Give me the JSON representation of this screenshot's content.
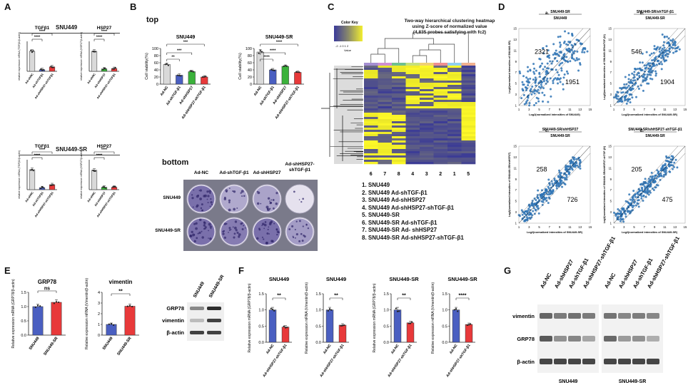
{
  "panels": {
    "A": "A",
    "B": "B",
    "C": "C",
    "D": "D",
    "E": "E",
    "F": "F",
    "G": "G"
  },
  "A": {
    "snu449_title": "SNU449",
    "snusr_title": "SNU449-SR",
    "charts": [
      {
        "title": "TGFβ1",
        "ylabel": "relative expression mRNA (TGFβ1/β-actin)",
        "categories": [
          "Ad-shNC",
          "Ad-shTGFβ1",
          "Ad-shHSP27-shTGFβ1"
        ],
        "values": [
          1.0,
          0.08,
          0.22
        ],
        "colors": [
          "#d9d9d9",
          "#4a5fc1",
          "#e8393a"
        ],
        "sig": [
          "****",
          "****"
        ]
      },
      {
        "title": "HSP27",
        "ylabel": "relative expression mRNA (HSP27/β-actin)",
        "categories": [
          "Ad-shNC",
          "Ad-shHSP27",
          "Ad-shHSP27-shTGFβ1"
        ],
        "values": [
          1.0,
          0.12,
          0.14
        ],
        "colors": [
          "#d9d9d9",
          "#3bb23b",
          "#e8393a"
        ],
        "sig": [
          "****",
          "****"
        ]
      },
      {
        "title": "TGFβ1",
        "ylabel": "relative expression mRNA (TGFβ1/β-actin)",
        "categories": [
          "Ad-shNC",
          "Ad-shTGFβ1",
          "Ad-shHSP27-shTGFβ1"
        ],
        "values": [
          1.0,
          0.1,
          0.25
        ],
        "colors": [
          "#d9d9d9",
          "#4a5fc1",
          "#e8393a"
        ],
        "sig": [
          "****",
          "****"
        ]
      },
      {
        "title": "HSP27",
        "ylabel": "relative expression mRNA (HSP27/β-actin)",
        "categories": [
          "Ad-shNC",
          "Ad-shHSP27",
          "Ad-shHSP27-shTGFβ1"
        ],
        "values": [
          0.97,
          0.12,
          0.12
        ],
        "colors": [
          "#d9d9d9",
          "#3bb23b",
          "#e8393a"
        ],
        "sig": [
          "****",
          "****"
        ]
      }
    ]
  },
  "B": {
    "top_label": "top",
    "bottom_label": "bottom",
    "charts": [
      {
        "title": "SNU449",
        "ylabel": "Cell viability(%)",
        "yticks": [
          "0",
          "20",
          "40",
          "60",
          "80",
          "100"
        ],
        "categories": [
          "Ad-NC",
          "Ad-shTGF-β1",
          "Ad-shHSP27",
          "Ad-shHSP27-shTGF-β1"
        ],
        "values": [
          55,
          25,
          35,
          20
        ],
        "colors": [
          "#d9d9d9",
          "#4a5fc1",
          "#3bb23b",
          "#e8393a"
        ],
        "sig": [
          "**",
          "***",
          "***"
        ]
      },
      {
        "title": "SNU449-SR",
        "ylabel": "Cell viability(%)",
        "yticks": [
          "0",
          "20",
          "40",
          "60",
          "80",
          "100"
        ],
        "categories": [
          "Ad-NC",
          "Ad-shTGF-β1",
          "Ad-shHSP27",
          "Ad-shHSP27-shTGF-β1"
        ],
        "values": [
          90,
          40,
          50,
          33
        ],
        "colors": [
          "#d9d9d9",
          "#4a5fc1",
          "#3bb23b",
          "#e8393a"
        ],
        "sig": [
          "****",
          "****",
          "****"
        ]
      }
    ],
    "plate_cols": [
      "Ad-NC",
      "Ad-shTGF-β1",
      "Ad-shHSP27",
      "Ad-shHSP27-\nshTGF-β1"
    ],
    "plate_col_l1": [
      "Ad-NC",
      "Ad-shTGF-β1",
      "Ad-shHSP27",
      "Ad-shHSP27-"
    ],
    "plate_col_l2": [
      "",
      "",
      "",
      "shTGF-β1"
    ],
    "plate_rows": [
      "SNU449",
      "SNU449-SR"
    ]
  },
  "C": {
    "title1": "Two-way hierarchical clustering heatmap",
    "title2": "using Z-score of normalized value",
    "title3": "(4,835 probes satisfying with fc2)",
    "color_key": "Color Key",
    "value_label": "Value",
    "key_ticks": "-2  -1  0  1  2",
    "col_order": [
      "6",
      "7",
      "8",
      "4",
      "3",
      "2",
      "1",
      "5"
    ],
    "col_colors": [
      "#a58fd1",
      "#d08fd1",
      "#6fc08f",
      "#c5e07a",
      "#f0d075",
      "#f08f8f",
      "#8fd0f0",
      "#f0b08f"
    ],
    "legend": [
      "1. SNU449",
      "2. SNU449 Ad-shTGF-β1",
      "3. SNU449 Ad-shHSP27",
      "4. SNU449 Ad-shHSP27-shTGF-β1",
      "5. SNU449-SR",
      "6. SNU449-SR Ad-shTGF-β1",
      "7. SNU449-SR Ad- shHSP27",
      "8. SNU449-SR Ad-shHSP27-shTGF-β1"
    ]
  },
  "D": {
    "plots": [
      {
        "letter": "a.",
        "num": "SNU449-SR",
        "den": "SNU449",
        "up": "2321",
        "down": "1951",
        "ylabel": "Log2(normalized intensities of SNU449-SR)",
        "xlabel": "Log2(normalized intensities of SNU449)"
      },
      {
        "letter": "b.",
        "num": "SNU449-SR/shTGF-β1",
        "den": "SNU449-SR",
        "up": "546",
        "down": "1904",
        "ylabel": "Log2(normalized intensities of SNU449-SR/shTGF-β1)",
        "xlabel": "Log2(normalized intensities of SNU449-SR)"
      },
      {
        "letter": "c.",
        "num": "SNU449-SR/shHSP27",
        "den": "SNU449-SR",
        "up": "258",
        "down": "726",
        "ylabel": "Log2(normalized intensities of SNU449-SR/shHSP27)",
        "xlabel": "Log2(normalized intensities of SNU449-SR)"
      },
      {
        "letter": "d.",
        "num": "SNU449-SR/shHSP27-shTGF-β1",
        "den": "SNU449-SR",
        "up": "205",
        "down": "475",
        "ylabel": "Log2(normalized intensities of SNU449-SR/shHSP27-shTGF-β1)",
        "xlabel": "Log2(normalized intensities of SNU449-SR)"
      }
    ],
    "ticks_x": [
      "1",
      "3",
      "5",
      "7",
      "9",
      "11",
      "13",
      "15"
    ],
    "ticks_y": [
      "1",
      "3",
      "5",
      "7",
      "9",
      "11",
      "13",
      "15"
    ]
  },
  "E": {
    "charts": [
      {
        "title": "GRP78",
        "ylabel": "Relative expression mRNA (GRP78/β-actin)",
        "yticks": [
          "0.0",
          "0.5",
          "1.0",
          "1.5"
        ],
        "categories": [
          "SNU449",
          "SNU449-SR"
        ],
        "values": [
          1.0,
          1.15
        ],
        "colors": [
          "#4a5fc1",
          "#e8393a"
        ],
        "sig": "ns"
      },
      {
        "title": "vimentin",
        "ylabel": "Relative expression mRNA (Vimentin/β-actin)",
        "yticks": [
          "0",
          "1",
          "2",
          "3",
          "4"
        ],
        "categories": [
          "SNU449",
          "SNU449-SR"
        ],
        "values": [
          1.0,
          2.7
        ],
        "colors": [
          "#4a5fc1",
          "#e8393a"
        ],
        "sig": "**"
      }
    ],
    "blot_cols": [
      "SNU449",
      "SNU449-SR"
    ],
    "blot_rows": [
      "GRP78",
      "vimentin",
      "β-actin"
    ]
  },
  "F": {
    "charts": [
      {
        "title": "SNU449",
        "ylabel": "Relative expression mRNA (GRP78/β-actin)",
        "categories": [
          "Ad-NC",
          "Ad-shHSP27-shTGF-β1"
        ],
        "values": [
          1.0,
          0.47
        ],
        "sig": "**"
      },
      {
        "title": "SNU449",
        "ylabel": "Relative expression mRNA (Vimentin/β-actin)",
        "categories": [
          "Ad-NC",
          "Ad-shHSP27-shTGF-β1"
        ],
        "values": [
          1.0,
          0.53
        ],
        "sig": "**"
      },
      {
        "title": "SNU449-SR",
        "ylabel": "Relative expression mRNA (GRP78/β-actin)",
        "categories": [
          "Ad-NC",
          "Ad-shHSP27-shTGF-β1"
        ],
        "values": [
          1.0,
          0.6
        ],
        "sig": "**"
      },
      {
        "title": "SNU449-SR",
        "ylabel": "Relative expression mRNA (Vimentin/β-actin)",
        "categories": [
          "Ad-NC",
          "Ad-shHSP27-shTGF-β1"
        ],
        "values": [
          1.0,
          0.55
        ],
        "sig": "****"
      }
    ],
    "yticks": [
      "0.0",
      "0.5",
      "1.0",
      "1.5"
    ],
    "colors": [
      "#4a5fc1",
      "#e8393a"
    ]
  },
  "G": {
    "cols": [
      "Ad-NC",
      "Ad-shHSP27",
      "Ad-shTGF-β1",
      "Ad-shHSP27-shTGF-β1"
    ],
    "rows": [
      "vimentin",
      "GRP78",
      "β-actin"
    ],
    "groups": [
      "SNU449",
      "SNU449-SR"
    ]
  }
}
